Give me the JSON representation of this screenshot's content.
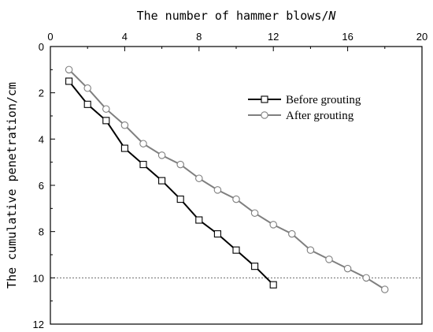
{
  "chart_data": {
    "type": "line",
    "title": "",
    "xlabel": "The number of hammer blows/",
    "xlabel_var": "N",
    "ylabel": "The cumulative penetration/cm",
    "x_axis_position": "top",
    "y_axis_inverted": true,
    "xlim": [
      0,
      20
    ],
    "ylim": [
      0,
      12
    ],
    "x_ticks": [
      "0",
      "4",
      "8",
      "12",
      "16",
      "20"
    ],
    "y_ticks": [
      "0",
      "2",
      "4",
      "6",
      "8",
      "10",
      "12"
    ],
    "grid": false,
    "legend_position": "top-right",
    "reference_line": {
      "y": 10,
      "style": "dotted"
    },
    "series": [
      {
        "name": "Before grouting",
        "marker": "square",
        "color": "#000000",
        "x": [
          1,
          2,
          3,
          4,
          5,
          6,
          7,
          8,
          9,
          10,
          11,
          12
        ],
        "y": [
          1.5,
          2.5,
          3.2,
          4.4,
          5.1,
          5.8,
          6.6,
          7.5,
          8.1,
          8.8,
          9.5,
          10.3
        ]
      },
      {
        "name": "After grouting",
        "marker": "circle",
        "color": "#7f7f7f",
        "x": [
          1,
          2,
          3,
          4,
          5,
          6,
          7,
          8,
          9,
          10,
          11,
          12,
          13,
          14,
          15,
          16,
          17,
          18
        ],
        "y": [
          1.0,
          1.8,
          2.7,
          3.4,
          4.2,
          4.7,
          5.1,
          5.7,
          6.2,
          6.6,
          7.2,
          7.7,
          8.1,
          8.8,
          9.2,
          9.6,
          10.0,
          10.5
        ]
      }
    ]
  }
}
